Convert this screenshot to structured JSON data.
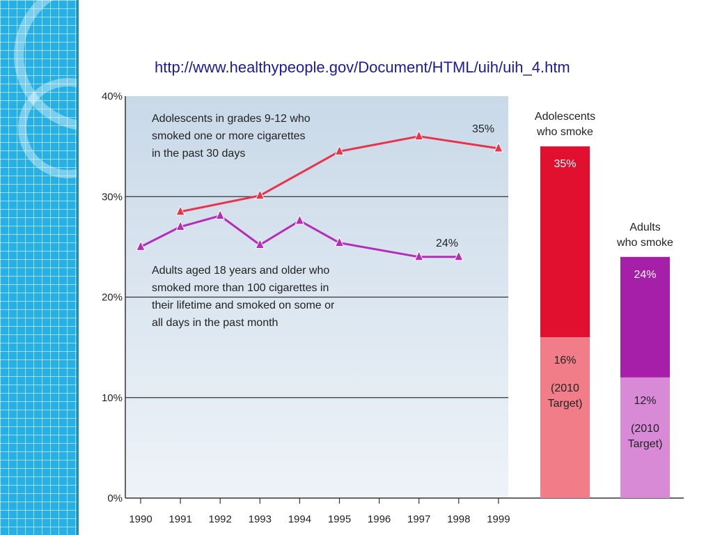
{
  "slide": {
    "url_text": "http://www.healthypeople.gov/Document/HTML/uih/uih_4.htm"
  },
  "colors": {
    "sidebar": "#27b0e6",
    "adolescent_line": "#e8334a",
    "adult_line": "#b52cb8",
    "adolescent_bar": "#e0102e",
    "adolescent_target": "#f07d88",
    "adult_bar": "#a51fa8",
    "adult_target": "#d98ad6"
  },
  "chart_data": [
    {
      "type": "line",
      "x": [
        1990,
        1991,
        1992,
        1993,
        1994,
        1995,
        1996,
        1997,
        1998,
        1999
      ],
      "x_tick_labels": [
        "1990",
        "1991",
        "1992",
        "1993",
        "1994",
        "1995",
        "1996",
        "1997",
        "1998",
        "1999"
      ],
      "y_tick_labels": [
        "0%",
        "10%",
        "20%",
        "30%",
        "40%"
      ],
      "y_ticks": [
        0,
        10,
        20,
        30,
        40
      ],
      "ylim": [
        0,
        40
      ],
      "grid": true,
      "series": [
        {
          "key": "adolescents",
          "annotation": [
            "Adolescents in grades 9-12 who",
            "smoked one or more cigarettes",
            "in the past 30 days"
          ],
          "end_label": "35%",
          "points": [
            [
              1991,
              28.5
            ],
            [
              1993,
              30.1
            ],
            [
              1995,
              34.5
            ],
            [
              1997,
              36.0
            ],
            [
              1999,
              34.8
            ]
          ]
        },
        {
          "key": "adults",
          "annotation": [
            "Adults aged 18 years and older who",
            "smoked more than 100 cigarettes in",
            "their lifetime and smoked on some or",
            "all days in the past month"
          ],
          "end_label": "24%",
          "points": [
            [
              1990,
              25.0
            ],
            [
              1991,
              27.0
            ],
            [
              1992,
              28.1
            ],
            [
              1993,
              25.2
            ],
            [
              1994,
              27.6
            ],
            [
              1995,
              25.4
            ],
            [
              1997,
              24.0
            ],
            [
              1998,
              24.0
            ]
          ]
        }
      ]
    },
    {
      "type": "bar",
      "bars": [
        {
          "title": [
            "Adolescents",
            "who smoke"
          ],
          "current": 35,
          "current_label": "35%",
          "target": 16,
          "target_label": "16%",
          "target_note": [
            "(2010",
            "Target)"
          ]
        },
        {
          "title": [
            "Adults",
            "who smoke"
          ],
          "current": 24,
          "current_label": "24%",
          "target": 12,
          "target_label": "12%",
          "target_note": [
            "(2010",
            "Target)"
          ]
        }
      ]
    }
  ]
}
